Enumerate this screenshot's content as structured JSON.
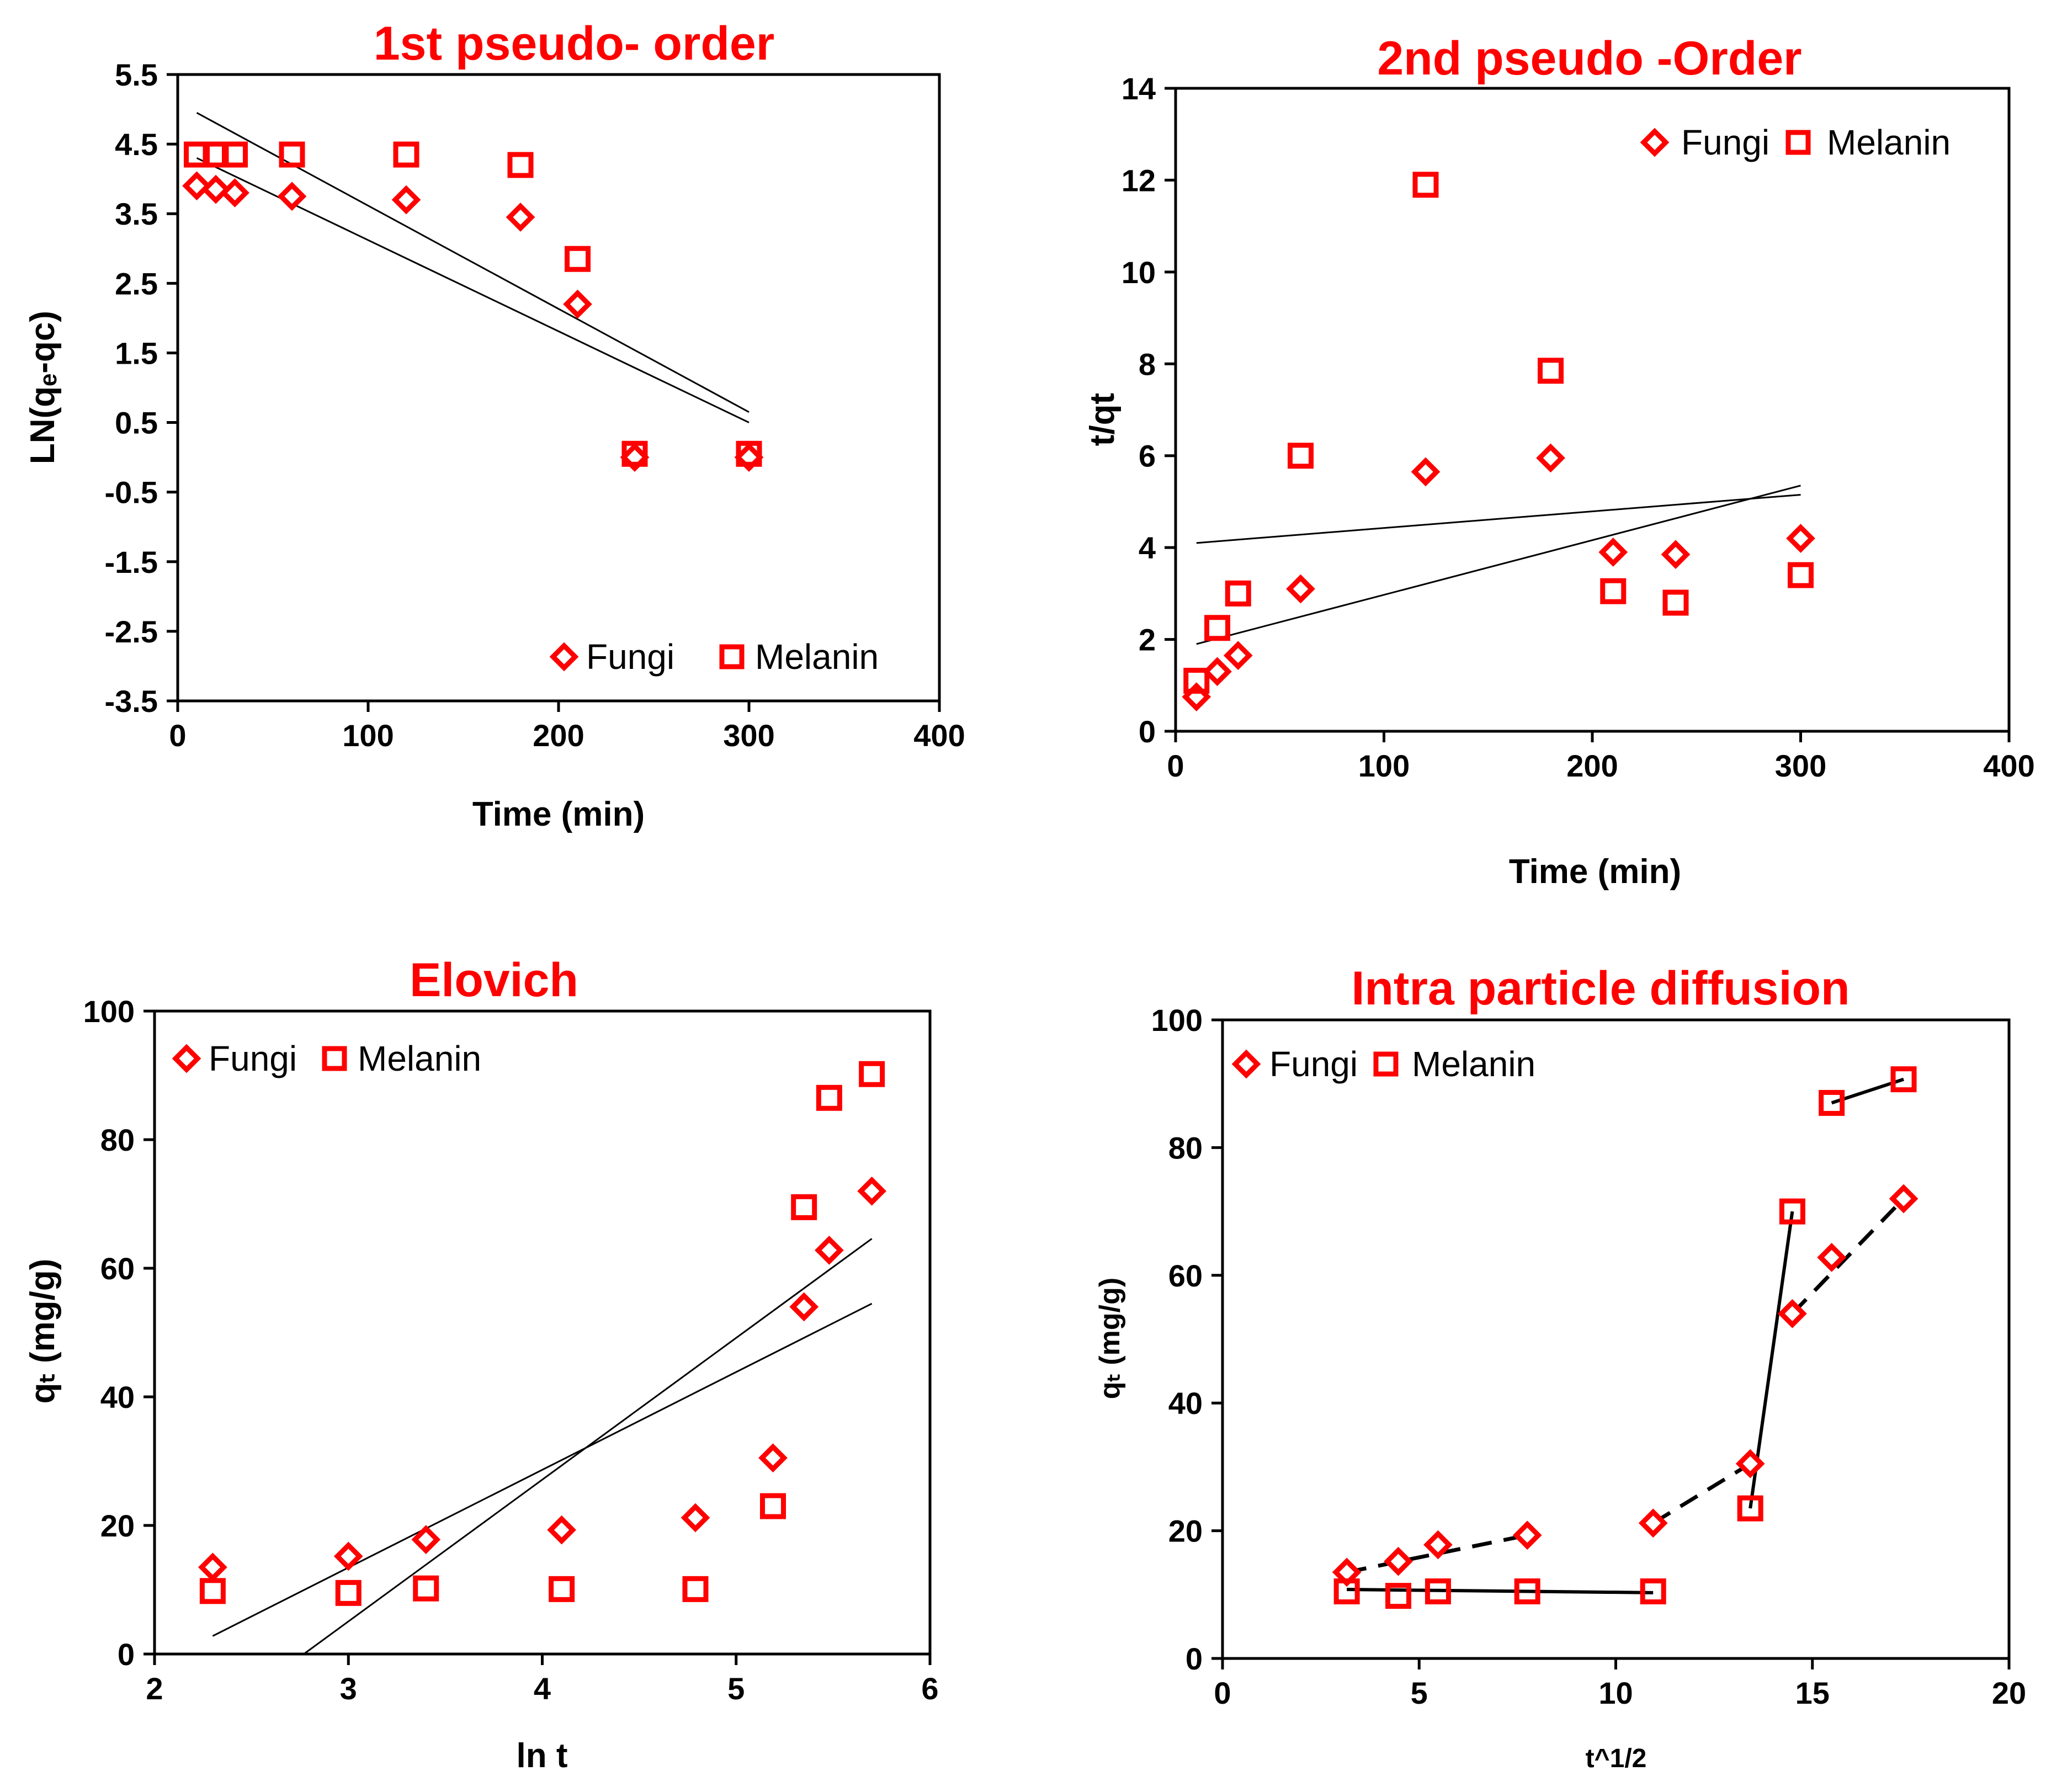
{
  "chart_data": [
    {
      "type": "scatter",
      "title": "1st pseudo- order",
      "xlabel": "Time (min)",
      "ylabel": "LN(qₑ-qᴄ)",
      "xlim": [
        0,
        400
      ],
      "ylim": [
        -3.5,
        5.5
      ],
      "xticks": [
        0,
        100,
        200,
        300,
        400
      ],
      "yticks": [
        -3.5,
        -2.5,
        -1.5,
        -0.5,
        0.5,
        1.5,
        2.5,
        3.5,
        4.5,
        5.5
      ],
      "xtick_labels": [
        "0",
        "100",
        "200",
        "300",
        "400"
      ],
      "ytick_labels": [
        "-3.5",
        "-2.5",
        "-1.5",
        "-0.5",
        "0.5",
        "1.5",
        "2.5",
        "3.5",
        "4.5",
        "5.5"
      ],
      "legend_position": "bottom-right",
      "series": [
        {
          "name": "Fungi",
          "marker": "diamond",
          "x": [
            10,
            20,
            30,
            60,
            120,
            180,
            210,
            240,
            300
          ],
          "y": [
            3.9,
            3.85,
            3.8,
            3.75,
            3.7,
            3.45,
            2.2,
            0.0,
            0.0
          ]
        },
        {
          "name": "Melanin",
          "marker": "square",
          "x": [
            10,
            20,
            30,
            60,
            120,
            180,
            210,
            240,
            300
          ],
          "y": [
            4.35,
            4.35,
            4.35,
            4.35,
            4.35,
            4.2,
            2.85,
            0.05,
            0.05
          ]
        }
      ],
      "trendlines": [
        {
          "x": [
            10,
            300
          ],
          "y": [
            4.3,
            0.5
          ],
          "style": "solid"
        },
        {
          "x": [
            10,
            300
          ],
          "y": [
            4.95,
            0.65
          ],
          "style": "solid"
        }
      ]
    },
    {
      "type": "scatter",
      "title": "2nd pseudo -Order",
      "xlabel": "Time (min)",
      "ylabel": "t/qt",
      "xlim": [
        0,
        400
      ],
      "ylim": [
        0,
        14
      ],
      "xticks": [
        0,
        100,
        200,
        300,
        400
      ],
      "yticks": [
        0,
        2,
        4,
        6,
        8,
        10,
        12,
        14
      ],
      "xtick_labels": [
        "0",
        "100",
        "200",
        "300",
        "400"
      ],
      "ytick_labels": [
        "0",
        "2",
        "4",
        "6",
        "8",
        "10",
        "12",
        "14"
      ],
      "legend_position": "top-right",
      "series": [
        {
          "name": "Fungi",
          "marker": "diamond",
          "x": [
            10,
            20,
            30,
            60,
            120,
            180,
            210,
            240,
            300
          ],
          "y": [
            0.75,
            1.3,
            1.65,
            3.1,
            5.65,
            5.95,
            3.9,
            3.85,
            4.2
          ]
        },
        {
          "name": "Melanin",
          "marker": "square",
          "x": [
            10,
            20,
            30,
            60,
            120,
            180,
            210,
            240,
            300
          ],
          "y": [
            1.1,
            2.25,
            3.0,
            6.0,
            11.9,
            7.85,
            3.05,
            2.8,
            3.4
          ]
        }
      ],
      "trendlines": [
        {
          "x": [
            10,
            300
          ],
          "y": [
            1.9,
            5.35
          ],
          "style": "solid"
        },
        {
          "x": [
            10,
            300
          ],
          "y": [
            4.1,
            5.15
          ],
          "style": "solid"
        }
      ]
    },
    {
      "type": "scatter",
      "title": "Elovich",
      "xlabel": "ln t",
      "ylabel": "qₜ (mg/g)",
      "xlim": [
        2,
        6
      ],
      "ylim": [
        0,
        100
      ],
      "xticks": [
        2,
        3,
        4,
        5,
        6
      ],
      "yticks": [
        0,
        20,
        40,
        60,
        80,
        100
      ],
      "xtick_labels": [
        "2",
        "3",
        "4",
        "5",
        "6"
      ],
      "ytick_labels": [
        "0",
        "20",
        "40",
        "60",
        "80",
        "100"
      ],
      "legend_position": "top-left",
      "series": [
        {
          "name": "Fungi",
          "marker": "diamond",
          "x": [
            2.3,
            3.0,
            3.4,
            4.1,
            4.79,
            5.19,
            5.35,
            5.48,
            5.7
          ],
          "y": [
            13.5,
            15.2,
            17.8,
            19.3,
            21.2,
            30.5,
            54.0,
            62.8,
            72.0
          ]
        },
        {
          "name": "Melanin",
          "marker": "square",
          "x": [
            2.3,
            3.0,
            3.4,
            4.1,
            4.79,
            5.19,
            5.35,
            5.48,
            5.7
          ],
          "y": [
            9.8,
            9.5,
            10.2,
            10.1,
            10.1,
            23.0,
            69.5,
            86.5,
            90.2
          ]
        }
      ],
      "trendlines": [
        {
          "x": [
            2.3,
            5.7
          ],
          "y": [
            2.8,
            54.5
          ],
          "style": "solid"
        },
        {
          "x": [
            2.77,
            5.7
          ],
          "y": [
            0.0,
            64.6
          ],
          "style": "solid"
        }
      ]
    },
    {
      "type": "scatter",
      "title": "Intra particle  diffusion",
      "xlabel": "t^1/2",
      "ylabel": "qₜ (mg/g)",
      "xlim": [
        0,
        20
      ],
      "ylim": [
        0,
        100
      ],
      "xticks": [
        0,
        5,
        10,
        15,
        20
      ],
      "yticks": [
        0,
        20,
        40,
        60,
        80,
        100
      ],
      "xtick_labels": [
        "0",
        "5",
        "10",
        "15",
        "20"
      ],
      "ytick_labels": [
        "0",
        "20",
        "40",
        "60",
        "80",
        "100"
      ],
      "legend_position": "top-left",
      "series": [
        {
          "name": "Fungi",
          "marker": "diamond",
          "x": [
            3.16,
            4.47,
            5.48,
            7.75,
            10.95,
            13.42,
            14.49,
            15.49,
            17.32
          ],
          "y": [
            13.5,
            15.2,
            17.8,
            19.3,
            21.2,
            30.5,
            54.0,
            62.8,
            72.0
          ]
        },
        {
          "name": "Melanin",
          "marker": "square",
          "x": [
            3.16,
            4.47,
            5.48,
            7.75,
            10.95,
            13.42,
            14.49,
            15.49,
            17.32
          ],
          "y": [
            10.5,
            9.8,
            10.5,
            10.5,
            10.5,
            23.5,
            70.0,
            87.0,
            90.7
          ]
        }
      ],
      "trendlines": [
        {
          "x": [
            3.16,
            7.75
          ],
          "y": [
            13.5,
            19.3
          ],
          "style": "dashed"
        },
        {
          "x": [
            10.95,
            13.42
          ],
          "y": [
            21.2,
            30.5
          ],
          "style": "dashed"
        },
        {
          "x": [
            14.49,
            17.32
          ],
          "y": [
            54.0,
            72.0
          ],
          "style": "dashed"
        },
        {
          "x": [
            3.16,
            10.95
          ],
          "y": [
            10.8,
            10.3
          ],
          "style": "solid"
        },
        {
          "x": [
            13.42,
            14.49
          ],
          "y": [
            23.5,
            70.0
          ],
          "style": "solid"
        },
        {
          "x": [
            15.49,
            17.32
          ],
          "y": [
            87.0,
            90.7
          ],
          "style": "solid"
        }
      ]
    }
  ]
}
